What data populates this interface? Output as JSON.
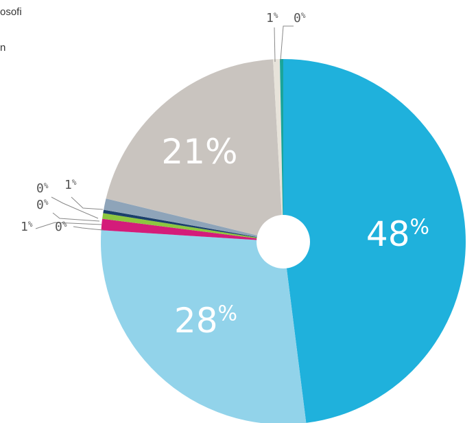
{
  "legend": {
    "line1": "osofi",
    "line2": "n"
  },
  "chart_data": {
    "type": "pie",
    "title": "",
    "slices": [
      {
        "label": "48%",
        "value": 48,
        "color": "#1fb1dc"
      },
      {
        "label": "28%",
        "value": 28,
        "color": "#92d3ea"
      },
      {
        "label": "1%",
        "value": 1,
        "color": "#d41c7a"
      },
      {
        "label": "0%",
        "value": 0.5,
        "color": "#8dc63f"
      },
      {
        "label": "0%",
        "value": 0.3,
        "color": "#1b3f6b"
      },
      {
        "label": "1%",
        "value": 1.0,
        "color": "#8ea4b9"
      },
      {
        "label": "21%",
        "value": 20.3,
        "color": "#c9c4bf"
      },
      {
        "label": "1%",
        "value": 0.6,
        "color": "#e7e3da"
      },
      {
        "label": "0%",
        "value": 0.3,
        "color": "#1aa59a"
      }
    ],
    "percent_symbol": "%"
  }
}
